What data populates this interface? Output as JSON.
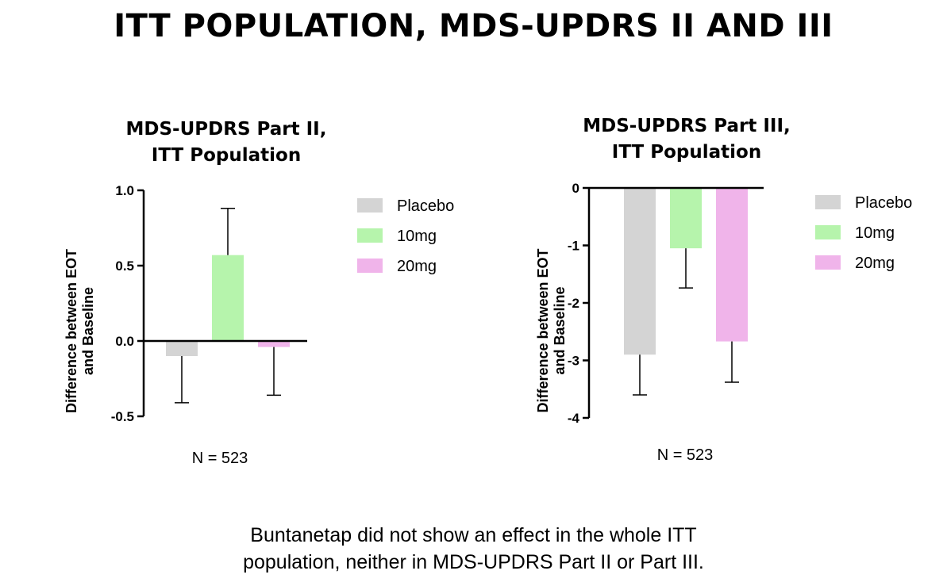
{
  "slide": {
    "title": "ITT POPULATION, MDS-UPDRS II AND III",
    "conclusion_lines": [
      "Buntanetap did not show an effect in the whole ITT",
      "population, neither in MDS-UPDRS Part II or Part III."
    ]
  },
  "chart_data": [
    {
      "type": "bar",
      "title_lines": [
        "MDS-UPDRS Part II,",
        "ITT Population"
      ],
      "ylabel_lines": [
        "Difference between EOT",
        "and Baseline"
      ],
      "categories": [
        "Placebo",
        "10mg",
        "20mg"
      ],
      "colors": [
        "#d4d4d4",
        "#b6f4ac",
        "#f0b4ea"
      ],
      "values": [
        -0.1,
        0.57,
        -0.04
      ],
      "error_bars": [
        {
          "direction": "down",
          "to": -0.41
        },
        {
          "direction": "up",
          "to": 0.88
        },
        {
          "direction": "down",
          "to": -0.36
        }
      ],
      "ylim": [
        -0.5,
        1.0
      ],
      "yticks": [
        1.0,
        0.5,
        0.0,
        -0.5
      ],
      "ytick_labels": [
        "1.0",
        "0.5",
        "0.0",
        "-0.5"
      ],
      "legend": [
        "Placebo",
        "10mg",
        "20mg"
      ],
      "legend_position": "right",
      "n_label": "N = 523"
    },
    {
      "type": "bar",
      "title_lines": [
        "MDS-UPDRS Part III,",
        "ITT Population"
      ],
      "ylabel_lines": [
        "Difference between EOT",
        "and Baseline"
      ],
      "categories": [
        "Placebo",
        "10mg",
        "20mg"
      ],
      "colors": [
        "#d4d4d4",
        "#b6f4ac",
        "#f0b4ea"
      ],
      "values": [
        -2.9,
        -1.05,
        -2.67
      ],
      "error_bars": [
        {
          "direction": "down",
          "to": -3.6
        },
        {
          "direction": "down",
          "to": -1.74
        },
        {
          "direction": "down",
          "to": -3.38
        }
      ],
      "ylim": [
        -4,
        0
      ],
      "yticks": [
        0,
        -1,
        -2,
        -3,
        -4
      ],
      "ytick_labels": [
        "0",
        "-1",
        "-2",
        "-3",
        "-4"
      ],
      "legend": [
        "Placebo",
        "10mg",
        "20mg"
      ],
      "legend_position": "right",
      "n_label": "N = 523"
    }
  ]
}
